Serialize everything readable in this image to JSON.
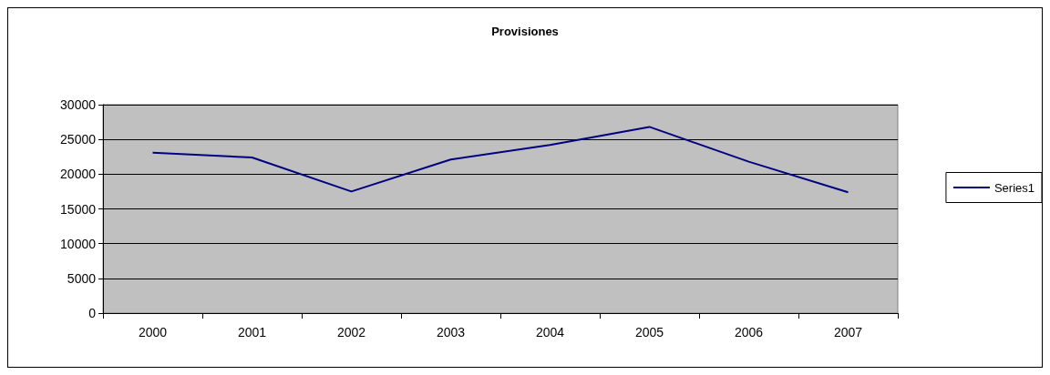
{
  "chart_data": {
    "type": "line",
    "title": "Provisiones",
    "categories": [
      "2000",
      "2001",
      "2002",
      "2003",
      "2004",
      "2005",
      "2006",
      "2007"
    ],
    "series": [
      {
        "name": "Series1",
        "color": "#000080",
        "values": [
          23100,
          22400,
          17500,
          22100,
          24200,
          26800,
          21800,
          17400
        ]
      }
    ],
    "ylim": [
      0,
      30000
    ],
    "yticks": [
      0,
      5000,
      10000,
      15000,
      20000,
      25000,
      30000
    ],
    "grid": "y",
    "legend": "right",
    "marker": "none",
    "line_style": "solid"
  }
}
